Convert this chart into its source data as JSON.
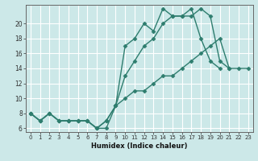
{
  "xlabel": "Humidex (Indice chaleur)",
  "x": [
    0,
    1,
    2,
    3,
    4,
    5,
    6,
    7,
    8,
    9,
    10,
    11,
    12,
    13,
    14,
    15,
    16,
    17,
    18,
    19,
    20,
    21,
    22,
    23
  ],
  "line1": [
    8,
    7,
    8,
    7,
    7,
    7,
    7,
    6,
    6,
    9,
    17,
    18,
    20,
    19,
    22,
    21,
    21,
    21,
    22,
    21,
    15,
    14,
    null,
    null
  ],
  "line2": [
    8,
    7,
    8,
    7,
    7,
    7,
    7,
    6,
    7,
    9,
    13,
    15,
    17,
    18,
    20,
    21,
    21,
    22,
    18,
    15,
    14,
    null,
    null,
    null
  ],
  "line3": [
    8,
    7,
    8,
    7,
    7,
    7,
    7,
    6,
    7,
    9,
    10,
    11,
    11,
    12,
    13,
    13,
    14,
    15,
    16,
    17,
    18,
    14,
    14,
    14
  ],
  "color": "#2e7d6e",
  "bg_color": "#cce8e8",
  "grid_color": "#ffffff",
  "ylim": [
    5.5,
    22.5
  ],
  "yticks": [
    6,
    8,
    10,
    12,
    14,
    16,
    18,
    20
  ],
  "xticks": [
    0,
    1,
    2,
    3,
    4,
    5,
    6,
    7,
    8,
    9,
    10,
    11,
    12,
    13,
    14,
    15,
    16,
    17,
    18,
    19,
    20,
    21,
    22,
    23
  ],
  "marker": "D",
  "markersize": 2.5,
  "linewidth": 1.0
}
